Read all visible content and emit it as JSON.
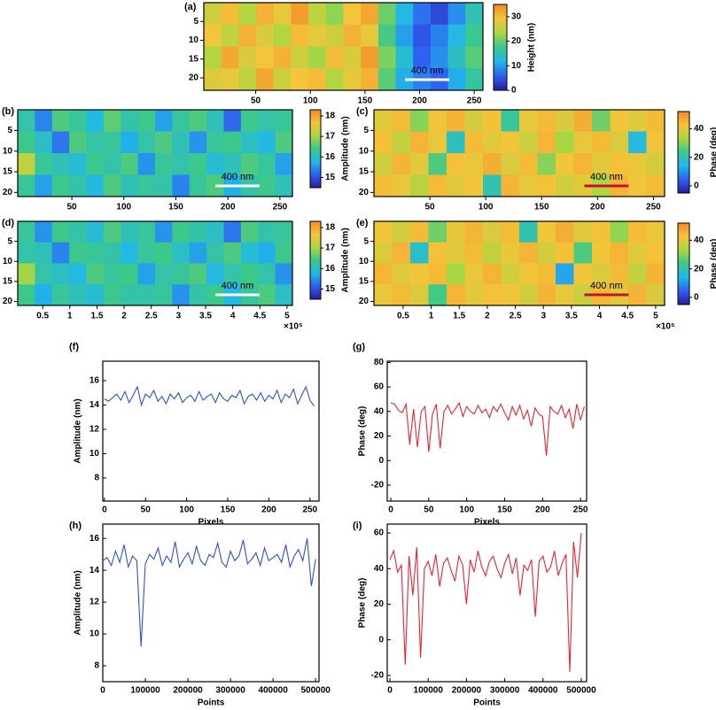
{
  "chart_data": [
    {
      "type": "heatmap",
      "panel_label": "(a)",
      "colorbar_label": "Height (nm)",
      "annotation": "400 nm",
      "annotation_color": "#ffffff",
      "colormap": [
        "#2a1c9c",
        "#2f5ff0",
        "#22b8e8",
        "#3cc88a",
        "#a9d742",
        "#f5c43a",
        "#f08a2a"
      ],
      "xlim": [
        2.5,
        258
      ],
      "ylim": [
        0,
        23.3
      ],
      "xticks": [
        50,
        100,
        150,
        200,
        250
      ],
      "yticks": [
        5,
        10,
        15,
        20
      ],
      "clim": [
        0,
        35
      ],
      "cticks": [
        0,
        10,
        20,
        30
      ],
      "z": [
        [
          26,
          30,
          24,
          31,
          28,
          33,
          25,
          22,
          29,
          32,
          20,
          12,
          7,
          4,
          9,
          15
        ],
        [
          29,
          25,
          31,
          27,
          24,
          30,
          28,
          26,
          31,
          28,
          18,
          10,
          5,
          8,
          12,
          17
        ],
        [
          24,
          32,
          27,
          29,
          31,
          26,
          23,
          30,
          27,
          33,
          21,
          13,
          6,
          9,
          14,
          19
        ],
        [
          27,
          28,
          25,
          32,
          26,
          29,
          30,
          24,
          28,
          31,
          19,
          11,
          8,
          6,
          11,
          16
        ]
      ]
    },
    {
      "type": "heatmap",
      "panel_label": "(b)",
      "colorbar_label": "Amplitude (nm)",
      "annotation": "400 nm",
      "annotation_color": "#ffffff",
      "colormap": [
        "#2a1c9c",
        "#2f5ff0",
        "#22b8e8",
        "#3cc88a",
        "#a9d742",
        "#f5c43a",
        "#f08a2a"
      ],
      "xlim": [
        -2,
        262
      ],
      "ylim": [
        0,
        21
      ],
      "xticks": [
        50,
        100,
        150,
        200,
        250
      ],
      "yticks": [
        5,
        10,
        15,
        20
      ],
      "clim": [
        14.5,
        18.3
      ],
      "cticks": [
        15,
        16,
        17,
        18
      ],
      "z": [
        [
          16.2,
          15.4,
          16.5,
          16.3,
          15.8,
          16.6,
          16.2,
          16.4,
          15.6,
          16.3,
          16.5,
          16.1,
          15.2,
          16.4,
          16.2,
          16.3
        ],
        [
          16.4,
          16.0,
          15.3,
          16.5,
          16.2,
          16.3,
          15.7,
          16.2,
          16.5,
          16.1,
          15.5,
          16.3,
          16.4,
          16.0,
          15.8,
          16.5
        ],
        [
          17.2,
          16.3,
          16.1,
          15.9,
          16.4,
          16.2,
          16.5,
          15.5,
          16.3,
          16.2,
          16.4,
          15.9,
          16.1,
          16.5,
          16.3,
          15.6
        ],
        [
          16.3,
          15.6,
          16.4,
          16.2,
          15.8,
          16.5,
          16.1,
          16.3,
          16.2,
          15.4,
          16.3,
          16.5,
          15.7,
          16.2,
          16.4,
          16.1
        ]
      ]
    },
    {
      "type": "heatmap",
      "panel_label": "(c)",
      "colorbar_label": "Phase (deg)",
      "annotation": "400 nm",
      "annotation_color": "#c8102e",
      "colormap": [
        "#2a1c9c",
        "#2f5ff0",
        "#22b8e8",
        "#3cc88a",
        "#a9d742",
        "#f5c43a",
        "#f08a2a"
      ],
      "xlim": [
        0,
        260
      ],
      "ylim": [
        0,
        21
      ],
      "xticks": [
        50,
        100,
        150,
        200,
        250
      ],
      "yticks": [
        5,
        10,
        15,
        20
      ],
      "clim": [
        -5,
        52
      ],
      "cticks": [
        0,
        20,
        40
      ],
      "z": [
        [
          40,
          44,
          30,
          42,
          45,
          38,
          43,
          22,
          41,
          44,
          39,
          46,
          28,
          42,
          40,
          44
        ],
        [
          43,
          36,
          45,
          41,
          18,
          44,
          40,
          42,
          37,
          45,
          33,
          41,
          44,
          39,
          15,
          42
        ],
        [
          38,
          45,
          40,
          25,
          43,
          41,
          46,
          39,
          44,
          30,
          42,
          45,
          40,
          43,
          41,
          38
        ],
        [
          44,
          41,
          35,
          44,
          40,
          42,
          20,
          45,
          41,
          43,
          38,
          40,
          34,
          45,
          42,
          44
        ]
      ]
    },
    {
      "type": "heatmap",
      "panel_label": "(d)",
      "colorbar_label": "Amplitude (nm)",
      "annotation": "400 nm",
      "annotation_color": "#ffffff",
      "x_multiplier": "×10⁵",
      "colormap": [
        "#2a1c9c",
        "#2f5ff0",
        "#22b8e8",
        "#3cc88a",
        "#a9d742",
        "#f5c43a",
        "#f08a2a"
      ],
      "xlim": [
        0.04,
        5.1
      ],
      "ylim": [
        0,
        21
      ],
      "xticks": [
        0.5,
        1,
        1.5,
        2,
        2.5,
        3,
        3.5,
        4,
        4.5,
        5
      ],
      "yticks": [
        5,
        10,
        15,
        20
      ],
      "clim": [
        14.5,
        18.3
      ],
      "cticks": [
        15,
        16,
        17,
        18
      ],
      "z": [
        [
          16.3,
          15.5,
          16.4,
          16.2,
          15.9,
          16.5,
          16.1,
          16.3,
          15.5,
          16.4,
          16.2,
          16.0,
          15.3,
          16.5,
          16.2,
          16.3
        ],
        [
          16.2,
          16.1,
          15.4,
          16.4,
          16.3,
          16.2,
          15.8,
          16.3,
          16.4,
          16.0,
          15.6,
          16.2,
          16.5,
          15.9,
          15.7,
          16.4
        ],
        [
          17.0,
          16.2,
          16.0,
          15.8,
          16.5,
          16.3,
          16.4,
          15.6,
          16.2,
          16.3,
          16.5,
          15.8,
          16.2,
          16.4,
          16.2,
          15.5
        ],
        [
          16.4,
          15.7,
          16.3,
          16.1,
          15.9,
          16.4,
          16.2,
          16.2,
          16.3,
          15.5,
          16.2,
          16.4,
          15.8,
          16.3,
          16.5,
          16.0
        ]
      ]
    },
    {
      "type": "heatmap",
      "panel_label": "(e)",
      "colorbar_label": "Phase (deg)",
      "annotation": "400 nm",
      "annotation_color": "#c8102e",
      "x_multiplier": "×10⁵",
      "colormap": [
        "#2a1c9c",
        "#2f5ff0",
        "#22b8e8",
        "#3cc88a",
        "#a9d742",
        "#f5c43a",
        "#f08a2a"
      ],
      "xlim": [
        -0.02,
        5.16
      ],
      "ylim": [
        0,
        21
      ],
      "xticks": [
        0.5,
        1,
        1.5,
        2,
        2.5,
        3,
        3.5,
        4,
        4.5,
        5
      ],
      "yticks": [
        5,
        10,
        15,
        20
      ],
      "clim": [
        -5,
        52
      ],
      "cticks": [
        0,
        20,
        40
      ],
      "z": [
        [
          42,
          38,
          44,
          28,
          41,
          45,
          39,
          44,
          20,
          42,
          46,
          40,
          43,
          31,
          44,
          41
        ],
        [
          39,
          45,
          17,
          43,
          40,
          44,
          36,
          41,
          45,
          38,
          43,
          25,
          42,
          45,
          40,
          43
        ],
        [
          45,
          40,
          42,
          44,
          33,
          41,
          45,
          38,
          42,
          44,
          12,
          42,
          39,
          44,
          36,
          45
        ],
        [
          41,
          44,
          39,
          24,
          45,
          40,
          43,
          42,
          38,
          45,
          41,
          37,
          44,
          40,
          45,
          39
        ]
      ]
    },
    {
      "type": "line",
      "panel_label": "(f)",
      "xlabel": "Pixels",
      "ylabel": "Amplitude (nm)",
      "color": "#2f4fd8",
      "xlim": [
        -2,
        261
      ],
      "ylim": [
        6.1,
        17.6
      ],
      "xticks": [
        0,
        50,
        100,
        150,
        200,
        250
      ],
      "yticks": [
        8,
        10,
        12,
        14,
        16
      ],
      "x": [
        0,
        5,
        10,
        15,
        20,
        25,
        30,
        35,
        40,
        45,
        50,
        55,
        60,
        65,
        70,
        75,
        80,
        85,
        90,
        95,
        100,
        105,
        110,
        115,
        120,
        125,
        130,
        135,
        140,
        145,
        150,
        155,
        160,
        165,
        170,
        175,
        180,
        185,
        190,
        195,
        200,
        205,
        210,
        215,
        220,
        225,
        230,
        235,
        240,
        245,
        250,
        255
      ],
      "values": [
        14.5,
        14.3,
        14.6,
        14.9,
        14.4,
        15.1,
        14.2,
        14.8,
        15.5,
        14.0,
        14.9,
        14.6,
        15.2,
        14.3,
        14.7,
        14.1,
        14.9,
        14.5,
        15.0,
        14.2,
        14.6,
        14.8,
        14.3,
        15.1,
        14.4,
        14.7,
        14.9,
        14.2,
        15.0,
        14.5,
        14.3,
        14.8,
        14.6,
        15.2,
        14.1,
        14.7,
        14.9,
        14.4,
        15.0,
        14.3,
        14.8,
        14.5,
        15.2,
        14.2,
        14.9,
        14.6,
        15.3,
        14.1,
        14.8,
        15.5,
        14.4,
        13.9
      ]
    },
    {
      "type": "line",
      "panel_label": "(g)",
      "xlabel": "Pixels",
      "ylabel": "Phase (deg)",
      "color": "#ee2233",
      "xlim": [
        -4.7,
        258
      ],
      "ylim": [
        -33,
        81
      ],
      "xticks": [
        0,
        50,
        100,
        150,
        200,
        250
      ],
      "yticks": [
        -20,
        0,
        20,
        40,
        60,
        80
      ],
      "x": [
        0,
        5,
        10,
        15,
        20,
        25,
        30,
        35,
        40,
        45,
        50,
        55,
        60,
        65,
        70,
        75,
        80,
        85,
        90,
        95,
        100,
        105,
        110,
        115,
        120,
        125,
        130,
        135,
        140,
        145,
        150,
        155,
        160,
        165,
        170,
        175,
        180,
        185,
        190,
        195,
        200,
        205,
        210,
        215,
        220,
        225,
        230,
        235,
        240,
        245,
        250,
        255
      ],
      "values": [
        47,
        46,
        41,
        39,
        46,
        13,
        42,
        11,
        40,
        44,
        7,
        38,
        46,
        10,
        40,
        45,
        38,
        42,
        47,
        36,
        44,
        40,
        38,
        45,
        39,
        42,
        35,
        44,
        40,
        46,
        39,
        33,
        44,
        37,
        45,
        34,
        41,
        28,
        43,
        38,
        36,
        4,
        44,
        40,
        38,
        45,
        35,
        42,
        26,
        46,
        33,
        44
      ]
    },
    {
      "type": "line",
      "panel_label": "(h)",
      "xlabel": "Points",
      "ylabel": "Amplitude (nm)",
      "color": "#2f4fd8",
      "xlim": [
        0,
        508000
      ],
      "ylim": [
        7,
        16.9
      ],
      "xticks": [
        0,
        100000,
        200000,
        300000,
        400000,
        500000
      ],
      "yticks": [
        8,
        10,
        12,
        14,
        16
      ],
      "x": [
        0,
        10000,
        20000,
        30000,
        40000,
        50000,
        60000,
        70000,
        80000,
        90000,
        100000,
        110000,
        120000,
        130000,
        140000,
        150000,
        160000,
        170000,
        180000,
        190000,
        200000,
        210000,
        220000,
        230000,
        240000,
        250000,
        260000,
        270000,
        280000,
        290000,
        300000,
        310000,
        320000,
        330000,
        340000,
        350000,
        360000,
        370000,
        380000,
        390000,
        400000,
        410000,
        420000,
        430000,
        440000,
        450000,
        460000,
        470000,
        480000,
        490000,
        500000
      ],
      "values": [
        14.6,
        14.8,
        14.3,
        15.2,
        14.5,
        15.6,
        14.2,
        14.9,
        14.6,
        9.2,
        14.4,
        15.0,
        14.7,
        15.4,
        14.3,
        14.9,
        14.5,
        15.8,
        14.2,
        14.7,
        15.1,
        14.4,
        15.5,
        14.6,
        14.3,
        15.0,
        14.8,
        15.7,
        14.5,
        14.2,
        15.2,
        14.6,
        14.9,
        15.9,
        14.4,
        14.7,
        15.1,
        14.3,
        15.4,
        14.6,
        14.8,
        15.0,
        14.5,
        15.6,
        14.2,
        14.9,
        15.3,
        14.6,
        16.0,
        13.0,
        14.7
      ]
    },
    {
      "type": "line",
      "panel_label": "(i)",
      "xlabel": "Points",
      "ylabel": "Phase (deg)",
      "color": "#ee2233",
      "xlim": [
        -7000,
        514000
      ],
      "ylim": [
        -23.5,
        65
      ],
      "xticks": [
        0,
        100000,
        200000,
        300000,
        400000,
        500000
      ],
      "yticks": [
        -20,
        0,
        20,
        40,
        60
      ],
      "x": [
        0,
        10000,
        20000,
        30000,
        40000,
        50000,
        60000,
        70000,
        80000,
        90000,
        100000,
        110000,
        120000,
        130000,
        140000,
        150000,
        160000,
        170000,
        180000,
        190000,
        200000,
        210000,
        220000,
        230000,
        240000,
        250000,
        260000,
        270000,
        280000,
        290000,
        300000,
        310000,
        320000,
        330000,
        340000,
        350000,
        360000,
        370000,
        380000,
        390000,
        400000,
        410000,
        420000,
        430000,
        440000,
        450000,
        460000,
        470000,
        480000,
        490000,
        500000
      ],
      "values": [
        45,
        50,
        38,
        42,
        -14,
        47,
        25,
        52,
        -10,
        40,
        44,
        36,
        48,
        30,
        43,
        46,
        39,
        33,
        47,
        42,
        20,
        45,
        38,
        50,
        41,
        36,
        44,
        47,
        40,
        35,
        43,
        48,
        37,
        46,
        25,
        42,
        39,
        45,
        13,
        44,
        47,
        38,
        41,
        50,
        36,
        43,
        48,
        -18,
        55,
        35,
        60
      ]
    }
  ]
}
